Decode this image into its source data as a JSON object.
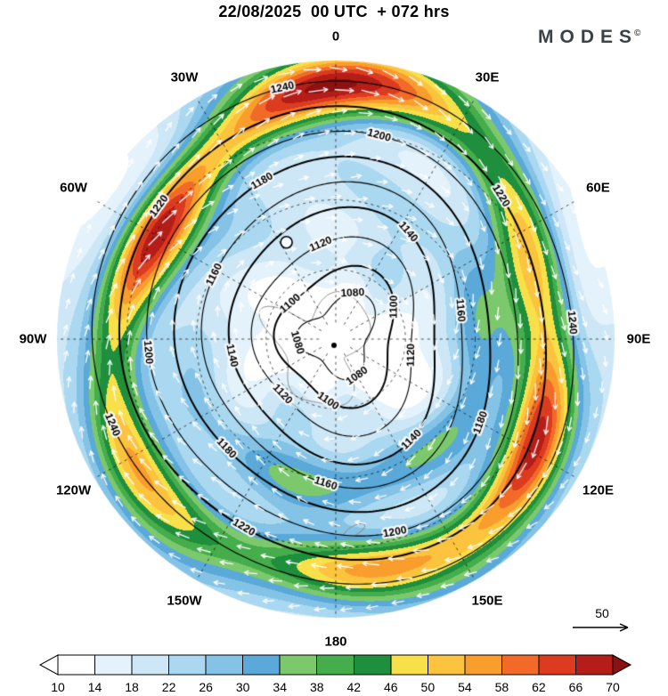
{
  "header": {
    "title": "22/08/2025  00 UTC  + 072 hrs",
    "logo": "MODES",
    "logo_mark": "©"
  },
  "chart_data": {
    "type": "heatmap",
    "projection": "south-polar-stereographic",
    "title": "22/08/2025  00 UTC  + 072 hrs",
    "longitude_labels": [
      "0",
      "30E",
      "60E",
      "90E",
      "120E",
      "150E",
      "180",
      "150W",
      "120W",
      "90W",
      "60W",
      "30W"
    ],
    "contour_levels": [
      1080,
      1100,
      1120,
      1140,
      1160,
      1180,
      1200,
      1220,
      1240
    ],
    "colorbar": {
      "ticks": [
        10,
        14,
        18,
        22,
        26,
        30,
        34,
        38,
        42,
        46,
        50,
        54,
        58,
        62,
        66,
        70
      ],
      "cell_colors": [
        "#ffffff",
        "#e4f2fb",
        "#cde7f6",
        "#aad8f0",
        "#84c3e6",
        "#5aa9d8",
        "#7cc96d",
        "#45ad4b",
        "#1f8f3d",
        "#f7e04a",
        "#fcc33e",
        "#f99d2c",
        "#f26a28",
        "#dc3b20",
        "#b51d18"
      ],
      "under_color": "#ffffff",
      "over_color": "#8c1111"
    },
    "reference_arrow": {
      "value": "50"
    },
    "markers": [
      {
        "symbol": "O"
      }
    ],
    "grid": "dashed graticule every 30 degrees longitude, 3 latitude circles"
  }
}
